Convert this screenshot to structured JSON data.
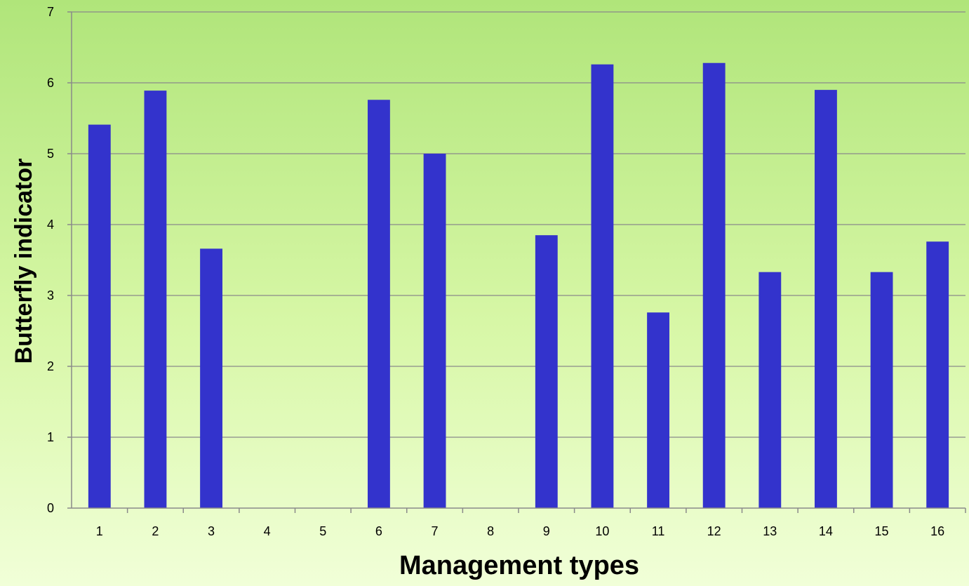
{
  "chart_data": {
    "type": "bar",
    "title": "",
    "xlabel": "Management types",
    "ylabel": "Butterfly indicator",
    "ylim": [
      0,
      7
    ],
    "yticks": [
      0,
      1,
      2,
      3,
      4,
      5,
      6,
      7
    ],
    "grid": true,
    "legend": "none",
    "categories": [
      "1",
      "2",
      "3",
      "4",
      "5",
      "6",
      "7",
      "8",
      "9",
      "10",
      "11",
      "12",
      "13",
      "14",
      "15",
      "16"
    ],
    "values": [
      5.41,
      5.89,
      3.66,
      0,
      0,
      5.76,
      5.0,
      0,
      3.85,
      6.26,
      2.76,
      6.28,
      3.33,
      5.9,
      3.33,
      3.76
    ],
    "bar_color": "#3333cc",
    "gridline_color": "#8a8a8a",
    "background_top_color": "#b0e57a",
    "background_bottom_color": "#f1ffd8"
  }
}
